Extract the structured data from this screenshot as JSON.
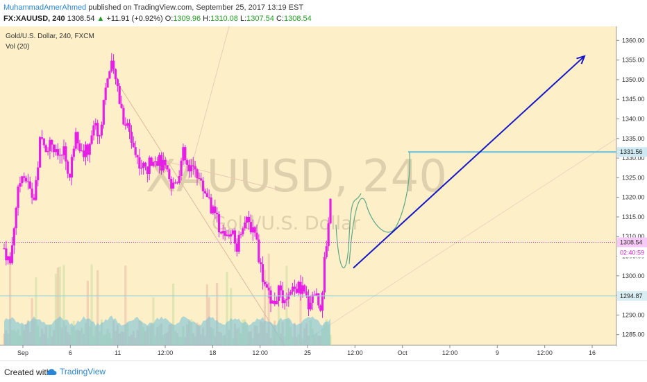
{
  "header": {
    "author": "MuhammadAmerAhmed",
    "published": "published on TradingView.com, September 25, 2017 13:19 EST",
    "symbol": "FX:XAUUSD, 240",
    "last": "1308.54",
    "arrow": "▲",
    "change": "+11.91 (+0.92%)",
    "o_label": "O:",
    "o": "1309.96",
    "h_label": "H:",
    "h": "1310.08",
    "l_label": "L:",
    "l": "1307.54",
    "c_label": "C:",
    "c": "1308.54"
  },
  "legend": {
    "title": "Gold/U.S. Dollar, 240, FXCM",
    "vol": "Vol (20)"
  },
  "watermark": {
    "symbol": "XAUUSD, 240",
    "name": "Gold/U.S. Dollar"
  },
  "price_labels": {
    "resistance": "1331.56",
    "last": "1308.54",
    "countdown": "02:40:59",
    "support": "1294.87"
  },
  "footer": {
    "created": "Created with",
    "brand": "TradingView"
  },
  "colors": {
    "background": "#fdf0c9",
    "candle": "#e61ee6",
    "trend_arrow": "#1515c8",
    "resistance": "#7ec8dd",
    "support": "#9dd4dd",
    "volume": "#6fbfd9",
    "curve": "#58a888"
  },
  "icons": {
    "brand": "tradingview-cloud-icon"
  },
  "chart_data": {
    "type": "candlestick",
    "symbol": "XAUUSD",
    "timeframe": "240",
    "ylim": [
      1283,
      1362
    ],
    "y_ticks": [
      1285,
      1290,
      1295,
      1300,
      1305,
      1310,
      1315,
      1320,
      1325,
      1330,
      1335,
      1340,
      1345,
      1350,
      1355,
      1360
    ],
    "x_tick_labels": [
      "Sep",
      "6",
      "11",
      "12:00",
      "18",
      "12:00",
      "25",
      "12:00",
      "Oct",
      "12:00",
      "9",
      "12:00",
      "16"
    ],
    "close_path": [
      1307,
      1303,
      1318,
      1327,
      1323,
      1319,
      1334,
      1333,
      1334,
      1329,
      1332,
      1325,
      1338,
      1331,
      1332,
      1339,
      1336,
      1349,
      1353,
      1348,
      1340,
      1337,
      1331,
      1328,
      1327,
      1331,
      1329,
      1327,
      1322,
      1325,
      1331,
      1326,
      1328,
      1323,
      1321,
      1316,
      1313,
      1309,
      1311,
      1307,
      1314,
      1313,
      1312,
      1302,
      1296,
      1293,
      1296,
      1292,
      1295,
      1297,
      1296,
      1293,
      1296,
      1292,
      1308.54
    ],
    "last_price": 1308.54,
    "resistance": 1331.56,
    "support": 1294.87,
    "forecast_arrow": {
      "from": 1302,
      "to": 1356
    }
  }
}
